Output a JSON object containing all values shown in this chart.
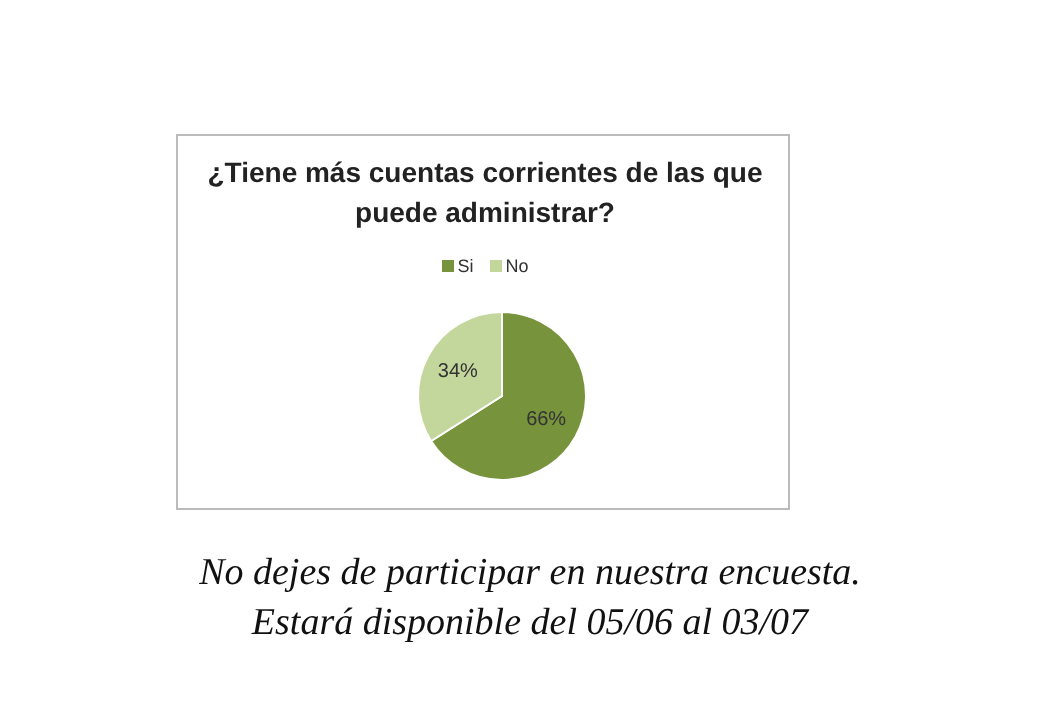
{
  "chart_data": {
    "type": "pie",
    "title": "¿Tiene más cuentas corrientes de las que puede administrar?",
    "categories": [
      "Si",
      "No"
    ],
    "values": [
      66,
      34
    ],
    "value_labels": [
      "66%",
      "34%"
    ],
    "colors": [
      "#77933c",
      "#c3d69b"
    ],
    "legend": "top",
    "annotations": [
      "No dejes de participar en nuestra encuesta.",
      "Estará disponible del  05/06 al 03/07"
    ]
  }
}
